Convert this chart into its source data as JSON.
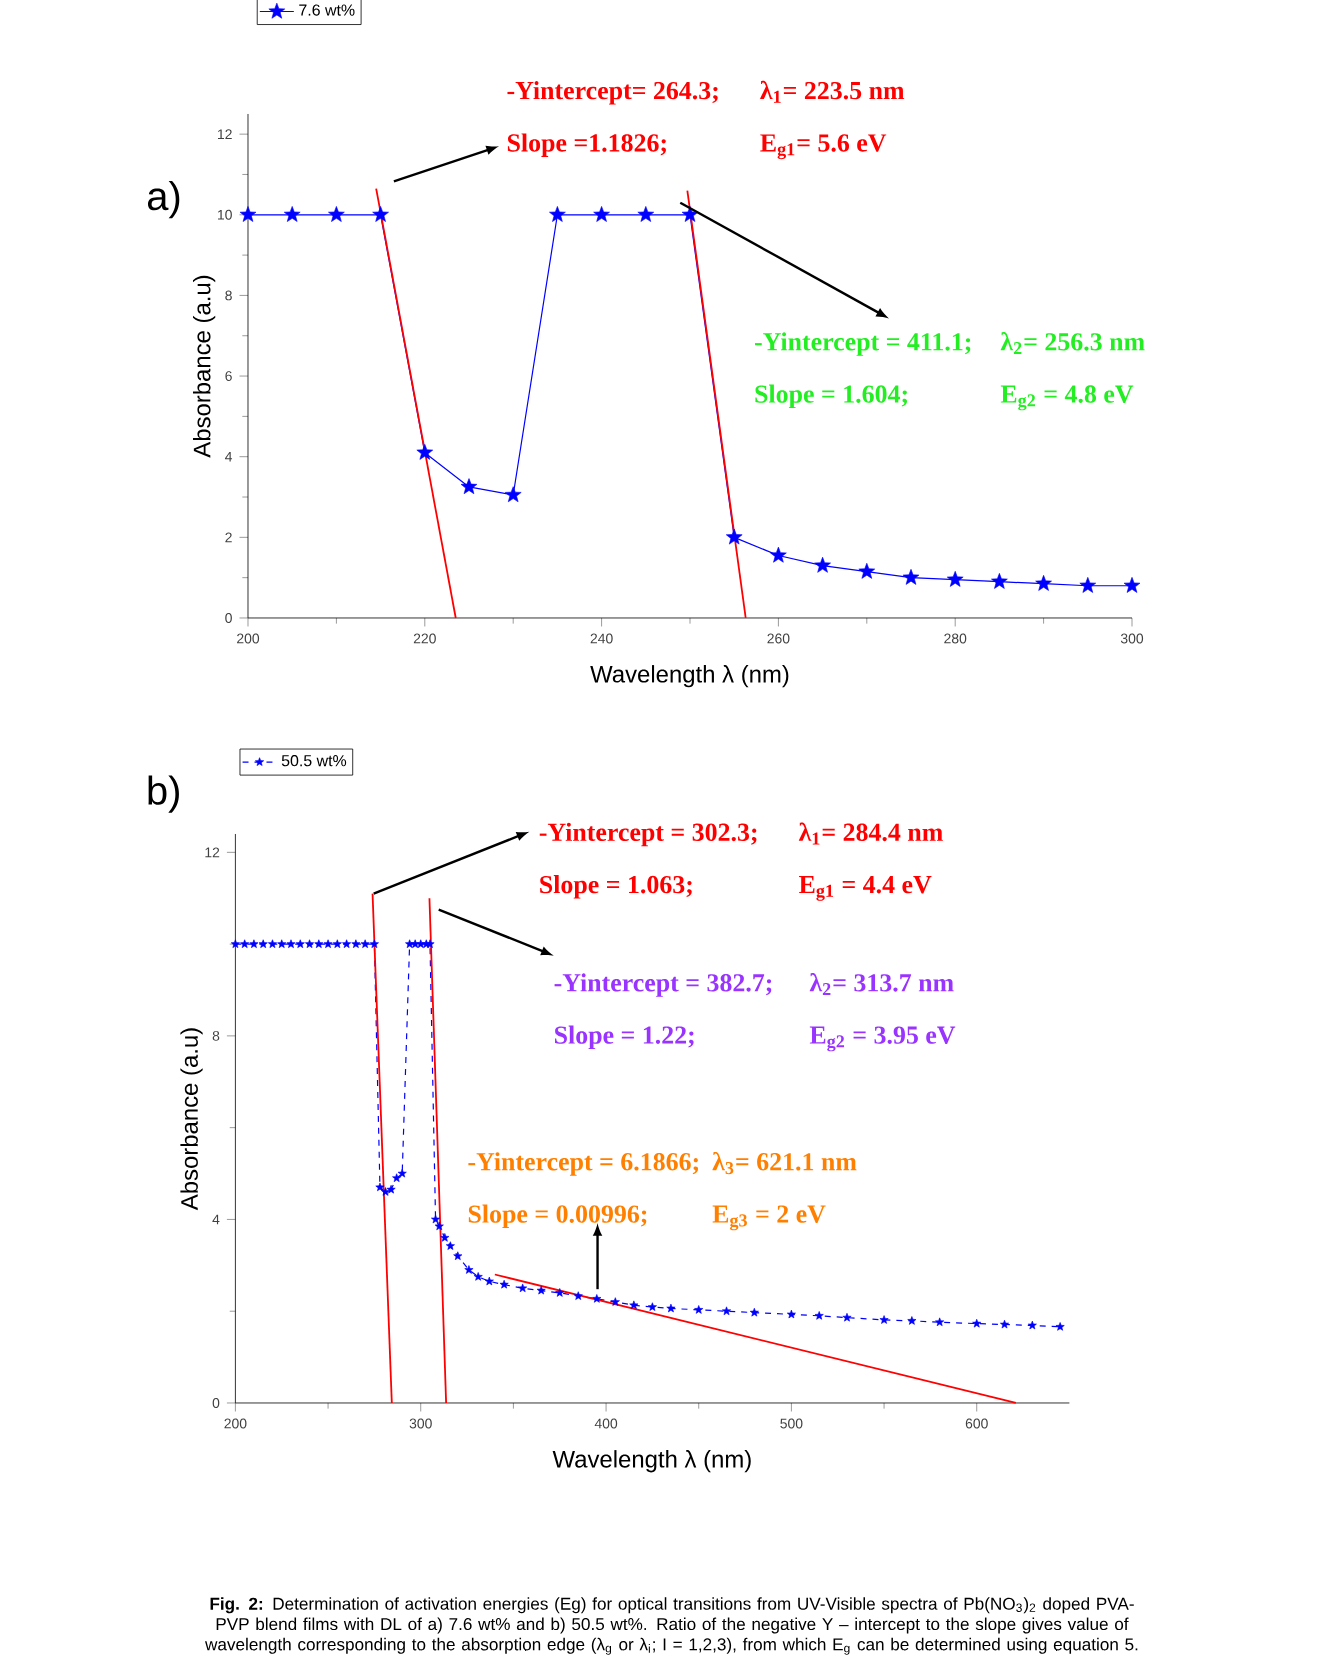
{
  "chart_data": [
    {
      "type": "line",
      "title": "a)",
      "xlabel": "Wavelength λ (nm)",
      "ylabel": "Absorbance (a.u)",
      "xlim": [
        200,
        300
      ],
      "ylim": [
        0,
        12.5
      ],
      "xticks": [
        200,
        220,
        240,
        260,
        280,
        300
      ],
      "yticks": [
        0,
        2,
        4,
        6,
        8,
        10,
        12
      ],
      "legend": "top left",
      "marker": "star",
      "line_style": "solid",
      "series": [
        {
          "name": "7.6 wt%",
          "color": "#0000ff",
          "x": [
            200,
            205,
            210,
            215,
            220,
            225,
            230,
            235,
            240,
            245,
            250,
            255,
            260,
            265,
            270,
            275,
            280,
            285,
            290,
            295,
            300
          ],
          "values": [
            10,
            10,
            10,
            10,
            4.1,
            3.25,
            3.05,
            10,
            10,
            10,
            10,
            2.0,
            1.55,
            1.3,
            1.15,
            1.0,
            0.95,
            0.9,
            0.85,
            0.8,
            0.8
          ]
        },
        {
          "type": "line",
          "marker": "none",
          "color": "#ff0000",
          "x": [
            214.5,
            223.5
          ],
          "values": [
            10.65,
            0
          ]
        },
        {
          "type": "line",
          "marker": "none",
          "color": "#ff0000",
          "x": [
            249.7,
            256.3
          ],
          "values": [
            10.6,
            0
          ]
        }
      ],
      "annotations": [
        "-Yintercept= 264.3;",
        "λ$_{1}$= 223.5 nm",
        "Slope =1.1826;",
        "E$_{g1}$= 5.6 eV",
        {
          "text": "-Yintercept = 411.1;",
          "x": 248.9,
          "y": 10.3
        },
        "λ$_{2}$= 256.3 nm",
        "Slope = 1.604;",
        "E$_{g2}$ = 4.8 eV"
      ]
    },
    {
      "type": "line",
      "title": "b)",
      "xlabel": "Wavelength λ (nm)",
      "ylabel": "Absorbance (a.u)",
      "xlim": [
        200,
        650
      ],
      "ylim": [
        0,
        12.4
      ],
      "xticks": [
        200,
        300,
        400,
        500,
        600
      ],
      "yticks": [
        0,
        4,
        8,
        12
      ],
      "legend": "top left",
      "marker": "star",
      "line_style": "dashed",
      "series": [
        {
          "name": "50.5 wt%",
          "color": "#0000ff",
          "x": [
            200,
            205,
            210,
            215,
            220,
            225,
            230,
            235,
            240,
            245,
            250,
            255,
            260,
            265,
            270,
            275,
            278,
            281,
            284,
            287,
            290,
            294,
            297,
            300,
            303,
            305,
            308,
            310,
            313,
            316,
            320,
            326,
            331,
            337,
            345,
            355,
            365,
            375,
            385,
            395,
            405,
            415,
            425,
            435,
            450,
            465,
            480,
            500,
            515,
            530,
            550,
            565,
            580,
            600,
            615,
            630,
            645
          ],
          "values": [
            10,
            10,
            10,
            10,
            10,
            10,
            10,
            10,
            10,
            10,
            10,
            10,
            10,
            10,
            10,
            10,
            4.7,
            4.6,
            4.65,
            4.9,
            5.0,
            10,
            10,
            10,
            10,
            10,
            4.0,
            3.85,
            3.6,
            3.42,
            3.2,
            2.9,
            2.75,
            2.65,
            2.58,
            2.5,
            2.45,
            2.4,
            2.33,
            2.27,
            2.2,
            2.13,
            2.09,
            2.06,
            2.03,
            2.0,
            1.97,
            1.93,
            1.9,
            1.86,
            1.81,
            1.79,
            1.76,
            1.73,
            1.71,
            1.69,
            1.66
          ]
        },
        {
          "type": "line",
          "marker": "none",
          "line_style": "solid",
          "color": "#ff0000",
          "x": [
            274.0,
            284.4
          ],
          "values": [
            11.1,
            0
          ]
        },
        {
          "type": "line",
          "marker": "none",
          "line_style": "solid",
          "color": "#ff0000",
          "x": [
            304.7,
            313.7
          ],
          "values": [
            11.0,
            0
          ]
        },
        {
          "type": "line",
          "marker": "none",
          "line_style": "solid",
          "color": "#ff0000",
          "x": [
            340,
            621.1
          ],
          "values": [
            2.8,
            0
          ]
        }
      ],
      "annotations": [
        {
          "text": "-Yintercept = 302.3;",
          "x": 274.6,
          "y": 11.1
        },
        "λ$_{1}$= 284.4 nm",
        "Slope = 1.063;",
        "E$_{g1}$ = 4.4 eV",
        {
          "text": "-Yintercept = 382.7;",
          "x": 309.7,
          "y": 10.75
        },
        "λ$_{2}$= 313.7 nm",
        "Slope = 1.22;",
        "E$_{g2}$ = 3.95 eV",
        "-Yintercept = 6.1866;",
        "λ$_{3}$= 621.1 nm",
        "Slope = 0.00996;",
        "E$_{g3}$ = 2 eV",
        "**Fig. 2:** Determination of activation energies (Eg) for optical transitions from UV-Visible spectra of Pb(NO$_{3}$)$_{2}$ doped PVA-PVP blend films with DL of a) 7.6 wt% and b) 50.5 wt%. Ratio of the negative Y – intercept to the slope gives value of wavelength corresponding to the absorption edge (λ$_{g}$ or λ$_{i}$; I = 1,2,3), from which E$_{g}$ can be determined using equation 5."
      ]
    }
  ]
}
